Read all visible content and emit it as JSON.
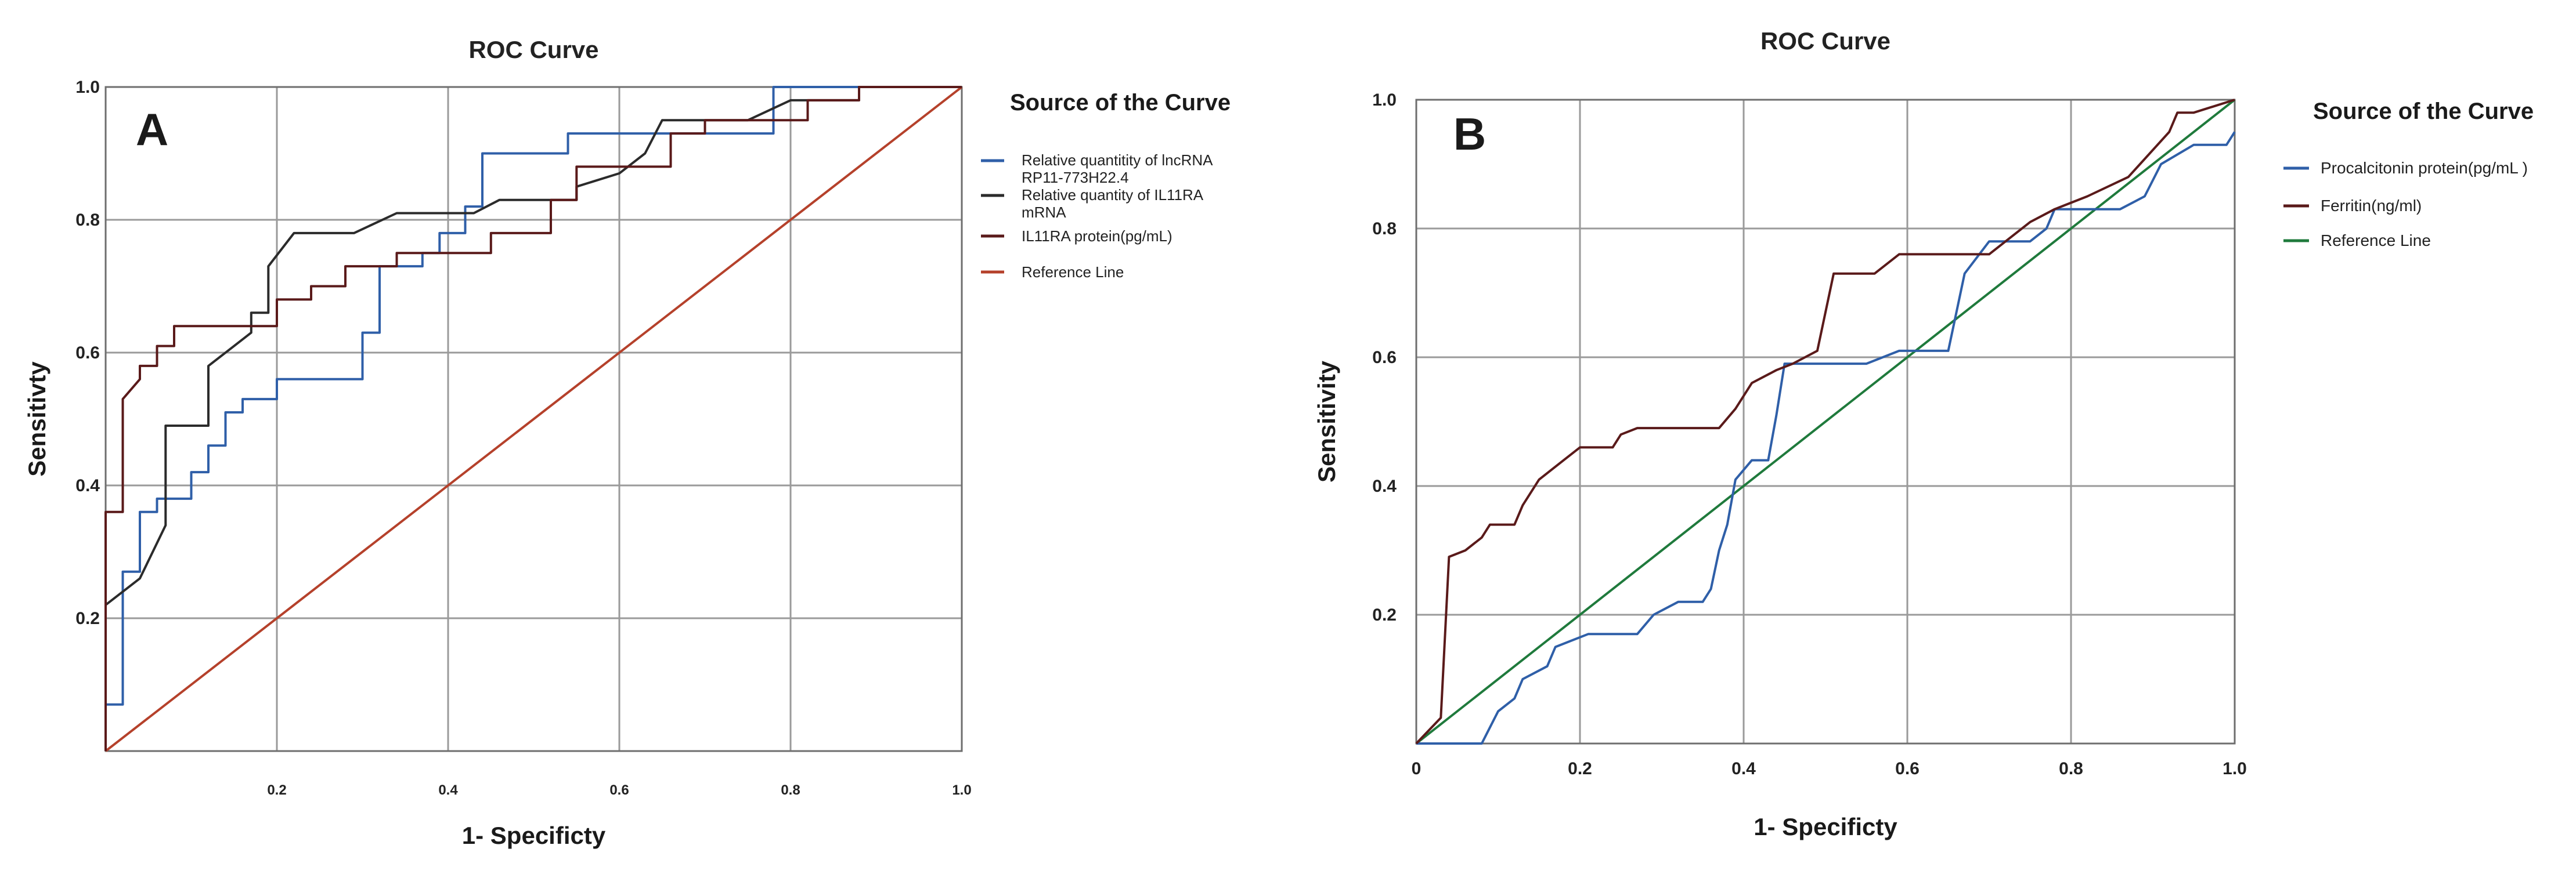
{
  "chart_data": [
    {
      "type": "line",
      "panel_label": "A",
      "title": "ROC Curve",
      "xlabel": "1- Specificty",
      "ylabel": "Sensitivty",
      "xlim": [
        0,
        1
      ],
      "ylim": [
        0,
        1
      ],
      "grid": true,
      "x_ticks": [
        "0.2",
        "0.4",
        "0.6",
        "0.8",
        "1.0"
      ],
      "y_ticks": [
        "0.2",
        "0.4",
        "0.6",
        "0.8",
        "1.0"
      ],
      "legend_title": "Source of the Curve",
      "legend_position": "right",
      "series": [
        {
          "name": "Relative quantitity of lncRNA RP11-773H22.4",
          "color": "#2f5fa8",
          "points": [
            [
              0,
              0
            ],
            [
              0,
              0.07
            ],
            [
              0.02,
              0.07
            ],
            [
              0.02,
              0.27
            ],
            [
              0.04,
              0.27
            ],
            [
              0.04,
              0.36
            ],
            [
              0.06,
              0.36
            ],
            [
              0.06,
              0.38
            ],
            [
              0.1,
              0.38
            ],
            [
              0.1,
              0.42
            ],
            [
              0.12,
              0.42
            ],
            [
              0.12,
              0.46
            ],
            [
              0.14,
              0.46
            ],
            [
              0.14,
              0.51
            ],
            [
              0.16,
              0.51
            ],
            [
              0.16,
              0.53
            ],
            [
              0.2,
              0.53
            ],
            [
              0.2,
              0.56
            ],
            [
              0.3,
              0.56
            ],
            [
              0.3,
              0.63
            ],
            [
              0.32,
              0.63
            ],
            [
              0.32,
              0.73
            ],
            [
              0.37,
              0.73
            ],
            [
              0.37,
              0.75
            ],
            [
              0.39,
              0.75
            ],
            [
              0.39,
              0.78
            ],
            [
              0.42,
              0.78
            ],
            [
              0.42,
              0.82
            ],
            [
              0.44,
              0.82
            ],
            [
              0.44,
              0.9
            ],
            [
              0.54,
              0.9
            ],
            [
              0.54,
              0.93
            ],
            [
              0.78,
              0.93
            ],
            [
              0.78,
              1.0
            ],
            [
              1.0,
              1.0
            ]
          ]
        },
        {
          "name": "Relative quantity of IL11RA mRNA",
          "color": "#2b2b2b",
          "points": [
            [
              0,
              0
            ],
            [
              0,
              0.22
            ],
            [
              0.04,
              0.26
            ],
            [
              0.07,
              0.34
            ],
            [
              0.07,
              0.49
            ],
            [
              0.12,
              0.49
            ],
            [
              0.12,
              0.58
            ],
            [
              0.15,
              0.61
            ],
            [
              0.17,
              0.63
            ],
            [
              0.17,
              0.66
            ],
            [
              0.19,
              0.66
            ],
            [
              0.19,
              0.73
            ],
            [
              0.22,
              0.78
            ],
            [
              0.29,
              0.78
            ],
            [
              0.34,
              0.81
            ],
            [
              0.43,
              0.81
            ],
            [
              0.46,
              0.83
            ],
            [
              0.55,
              0.83
            ],
            [
              0.55,
              0.85
            ],
            [
              0.6,
              0.87
            ],
            [
              0.63,
              0.9
            ],
            [
              0.65,
              0.95
            ],
            [
              0.75,
              0.95
            ],
            [
              0.8,
              0.98
            ],
            [
              0.88,
              0.98
            ],
            [
              0.88,
              1.0
            ],
            [
              1.0,
              1.0
            ]
          ]
        },
        {
          "name": "IL11RA protein(pg/mL)",
          "color": "#5a1a1a",
          "points": [
            [
              0,
              0
            ],
            [
              0,
              0.36
            ],
            [
              0.02,
              0.36
            ],
            [
              0.02,
              0.53
            ],
            [
              0.04,
              0.56
            ],
            [
              0.04,
              0.58
            ],
            [
              0.06,
              0.58
            ],
            [
              0.06,
              0.61
            ],
            [
              0.08,
              0.61
            ],
            [
              0.08,
              0.64
            ],
            [
              0.2,
              0.64
            ],
            [
              0.2,
              0.68
            ],
            [
              0.24,
              0.68
            ],
            [
              0.24,
              0.7
            ],
            [
              0.28,
              0.7
            ],
            [
              0.28,
              0.73
            ],
            [
              0.34,
              0.73
            ],
            [
              0.34,
              0.75
            ],
            [
              0.45,
              0.75
            ],
            [
              0.45,
              0.78
            ],
            [
              0.52,
              0.78
            ],
            [
              0.52,
              0.83
            ],
            [
              0.55,
              0.83
            ],
            [
              0.55,
              0.88
            ],
            [
              0.66,
              0.88
            ],
            [
              0.66,
              0.93
            ],
            [
              0.7,
              0.93
            ],
            [
              0.7,
              0.95
            ],
            [
              0.82,
              0.95
            ],
            [
              0.82,
              0.98
            ],
            [
              0.88,
              0.98
            ],
            [
              0.88,
              1.0
            ],
            [
              1.0,
              1.0
            ]
          ]
        },
        {
          "name": "Reference Line",
          "color": "#b5412b",
          "points": [
            [
              0,
              0
            ],
            [
              1,
              1
            ]
          ]
        }
      ]
    },
    {
      "type": "line",
      "panel_label": "B",
      "title": "ROC Curve",
      "xlabel": "1- Specificty",
      "ylabel": "Sensitivity",
      "xlim": [
        0,
        1
      ],
      "ylim": [
        0,
        1
      ],
      "grid": true,
      "x_ticks": [
        "0",
        "0.2",
        "0.4",
        "0.6",
        "0.8",
        "1.0"
      ],
      "y_ticks": [
        "0.2",
        "0.4",
        "0.6",
        "0.8",
        "1.0"
      ],
      "legend_title": "Source of the Curve",
      "legend_position": "right",
      "series": [
        {
          "name": "Procalcitonin protein(pg/mL )",
          "color": "#2f5fa8",
          "points": [
            [
              0,
              0
            ],
            [
              0.08,
              0
            ],
            [
              0.1,
              0.05
            ],
            [
              0.12,
              0.07
            ],
            [
              0.13,
              0.1
            ],
            [
              0.16,
              0.12
            ],
            [
              0.17,
              0.15
            ],
            [
              0.19,
              0.16
            ],
            [
              0.21,
              0.17
            ],
            [
              0.27,
              0.17
            ],
            [
              0.29,
              0.2
            ],
            [
              0.32,
              0.22
            ],
            [
              0.35,
              0.22
            ],
            [
              0.36,
              0.24
            ],
            [
              0.37,
              0.3
            ],
            [
              0.38,
              0.34
            ],
            [
              0.39,
              0.41
            ],
            [
              0.41,
              0.44
            ],
            [
              0.43,
              0.44
            ],
            [
              0.44,
              0.51
            ],
            [
              0.45,
              0.59
            ],
            [
              0.55,
              0.59
            ],
            [
              0.59,
              0.61
            ],
            [
              0.65,
              0.61
            ],
            [
              0.67,
              0.73
            ],
            [
              0.7,
              0.78
            ],
            [
              0.75,
              0.78
            ],
            [
              0.77,
              0.8
            ],
            [
              0.78,
              0.83
            ],
            [
              0.86,
              0.83
            ],
            [
              0.89,
              0.85
            ],
            [
              0.91,
              0.9
            ],
            [
              0.95,
              0.93
            ],
            [
              0.99,
              0.93
            ],
            [
              1.0,
              0.95
            ]
          ]
        },
        {
          "name": "Ferritin(ng/ml)",
          "color": "#5a1a1a",
          "points": [
            [
              0,
              0
            ],
            [
              0.03,
              0.04
            ],
            [
              0.04,
              0.29
            ],
            [
              0.06,
              0.3
            ],
            [
              0.08,
              0.32
            ],
            [
              0.09,
              0.34
            ],
            [
              0.12,
              0.34
            ],
            [
              0.13,
              0.37
            ],
            [
              0.15,
              0.41
            ],
            [
              0.18,
              0.44
            ],
            [
              0.2,
              0.46
            ],
            [
              0.24,
              0.46
            ],
            [
              0.25,
              0.48
            ],
            [
              0.27,
              0.49
            ],
            [
              0.37,
              0.49
            ],
            [
              0.39,
              0.52
            ],
            [
              0.41,
              0.56
            ],
            [
              0.44,
              0.58
            ],
            [
              0.46,
              0.59
            ],
            [
              0.49,
              0.61
            ],
            [
              0.51,
              0.73
            ],
            [
              0.56,
              0.73
            ],
            [
              0.59,
              0.76
            ],
            [
              0.7,
              0.76
            ],
            [
              0.75,
              0.81
            ],
            [
              0.78,
              0.83
            ],
            [
              0.82,
              0.85
            ],
            [
              0.87,
              0.88
            ],
            [
              0.92,
              0.95
            ],
            [
              0.93,
              0.98
            ],
            [
              0.95,
              0.98
            ],
            [
              1.0,
              1.0
            ]
          ]
        },
        {
          "name": "Reference Line",
          "color": "#1f7a3c",
          "points": [
            [
              0,
              0
            ],
            [
              1,
              1
            ]
          ]
        }
      ]
    }
  ]
}
